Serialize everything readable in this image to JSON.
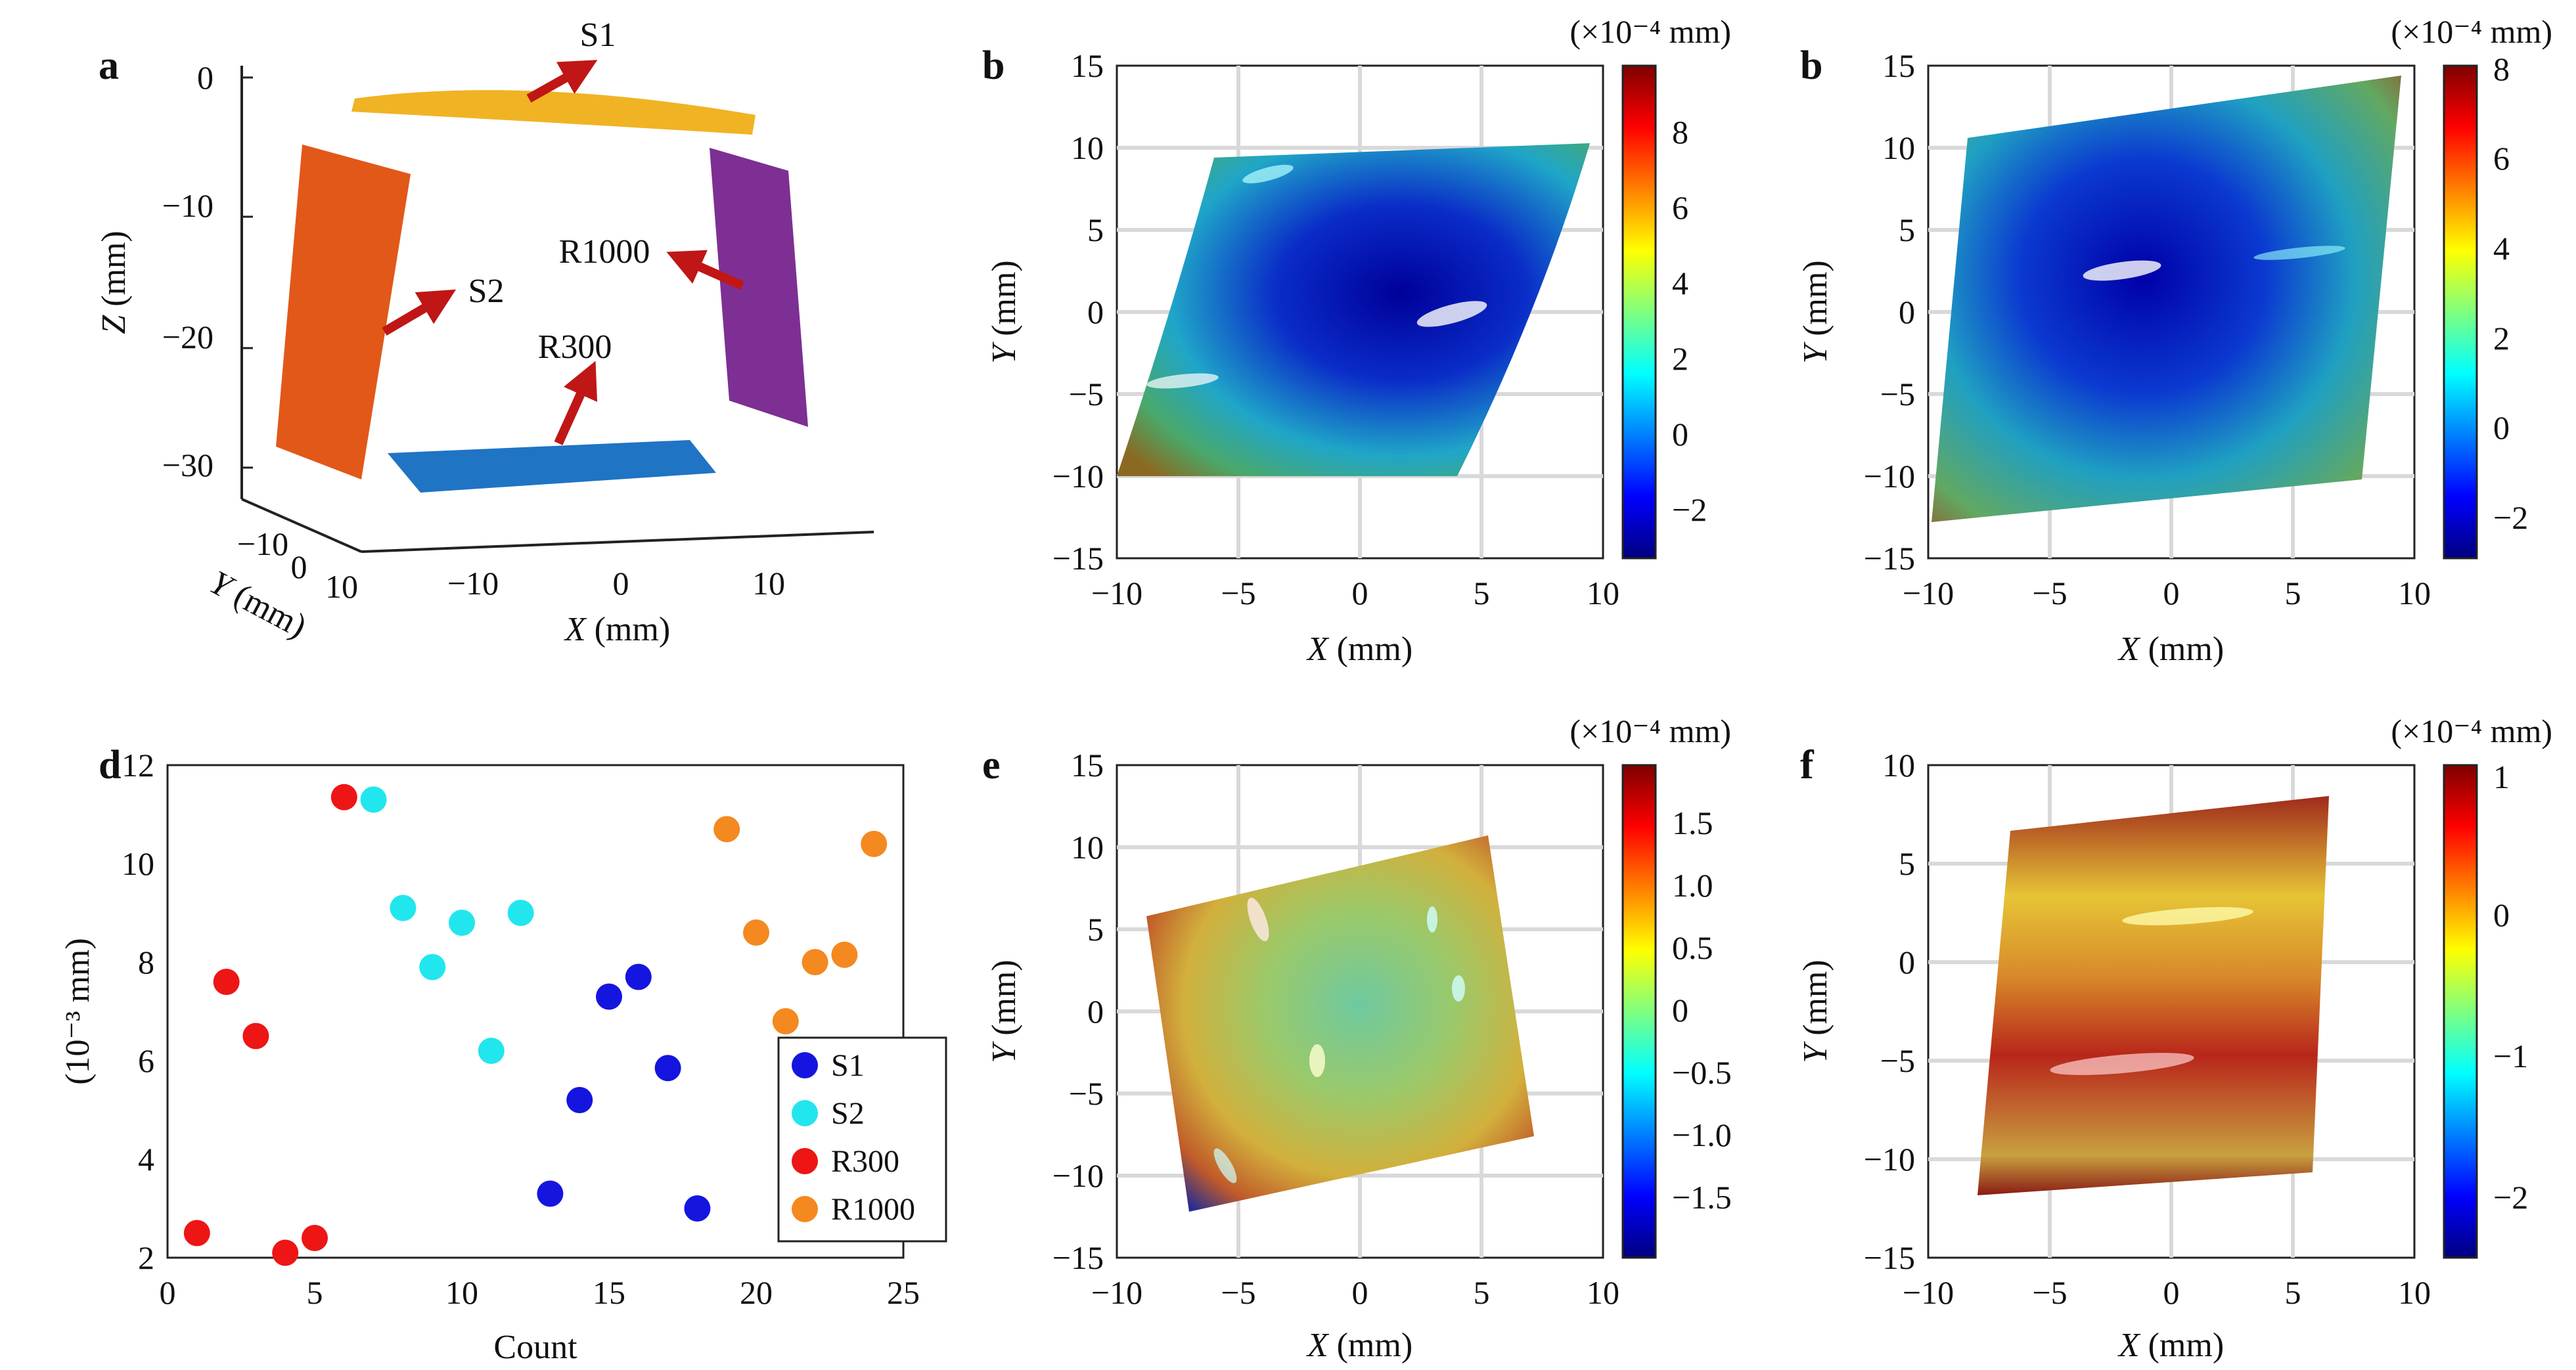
{
  "colors": {
    "S1": "#1515e0",
    "S2": "#22e6ee",
    "R300": "#ee1515",
    "R1000": "#f4891f",
    "surface_S1": "#f0b323",
    "surface_S2": "#e25819",
    "surface_R300": "#1f74c4",
    "surface_R1000": "#7d2f93",
    "arrow": "#c01616",
    "grid": "#d9d9d9",
    "axis": "#222222"
  },
  "panels": [
    {
      "id": "a",
      "letter": "a",
      "type": "3d-scatter-surfaces",
      "xlabel_var": "X",
      "xlabel_unit": " (mm)",
      "ylabel_var": "Y",
      "ylabel_unit": " (mm)",
      "zlabel_var": "Z",
      "zlabel_unit": " (mm)",
      "x_ticks": [
        "−10",
        "0",
        "10"
      ],
      "y_ticks": [
        "−10",
        "0",
        "10"
      ],
      "z_ticks": [
        "0",
        "−10",
        "−20",
        "−30"
      ],
      "surface_labels": [
        "S1",
        "S2",
        "R300",
        "R1000"
      ]
    },
    {
      "id": "b1",
      "letter": "b",
      "type": "heatmap",
      "xlabel_var": "X",
      "xlabel_unit": " (mm)",
      "ylabel_var": "Y",
      "ylabel_unit": " (mm)",
      "x_ticks": [
        "−10",
        "−5",
        "0",
        "5",
        "10"
      ],
      "y_ticks": [
        "15",
        "10",
        "5",
        "0",
        "−5",
        "−10",
        "−15"
      ],
      "colorbar_unit": "(×10⁻⁴ mm)",
      "colorbar_ticks": [
        "8",
        "6",
        "4",
        "2",
        "0",
        "−2"
      ],
      "colorbar_range": [
        -3.4,
        9.6
      ]
    },
    {
      "id": "b2",
      "letter": "b",
      "type": "heatmap",
      "xlabel_var": "X",
      "xlabel_unit": " (mm)",
      "ylabel_var": "Y",
      "ylabel_unit": " (mm)",
      "x_ticks": [
        "−10",
        "−5",
        "0",
        "5",
        "10"
      ],
      "y_ticks": [
        "15",
        "10",
        "5",
        "0",
        "−5",
        "−10",
        "−15"
      ],
      "colorbar_unit": "(×10⁻⁴ mm)",
      "colorbar_ticks": [
        "8",
        "6",
        "4",
        "2",
        "0",
        "−2"
      ],
      "colorbar_range": [
        -2.8,
        8.2
      ]
    },
    {
      "id": "e",
      "letter": "e",
      "type": "heatmap",
      "xlabel_var": "X",
      "xlabel_unit": " (mm)",
      "ylabel_var": "Y",
      "ylabel_unit": " (mm)",
      "x_ticks": [
        "−10",
        "−5",
        "0",
        "5",
        "10"
      ],
      "y_ticks": [
        "15",
        "10",
        "5",
        "0",
        "−5",
        "−10",
        "−15"
      ],
      "colorbar_unit": "(×10⁻⁴ mm)",
      "colorbar_ticks": [
        "1.5",
        "1.0",
        "0.5",
        "0",
        "−0.5",
        "−1.0",
        "−1.5"
      ],
      "colorbar_range": [
        -2.0,
        2.0
      ]
    },
    {
      "id": "f",
      "letter": "f",
      "type": "heatmap",
      "xlabel_var": "X",
      "xlabel_unit": " (mm)",
      "ylabel_var": "Y",
      "ylabel_unit": " (mm)",
      "x_ticks": [
        "−10",
        "−5",
        "0",
        "5",
        "10"
      ],
      "y_ticks": [
        "10",
        "5",
        "0",
        "−5",
        "−10",
        "−15"
      ],
      "colorbar_unit": "(×10⁻⁴ mm)",
      "colorbar_ticks": [
        "1",
        "0",
        "−1",
        "−2"
      ],
      "colorbar_range": [
        -2.3,
        1.2
      ]
    }
  ],
  "chart_data": {
    "type": "scatter",
    "letter": "d",
    "xlabel": "Count",
    "ylabel": "(10⁻³ mm)",
    "xlim": [
      0,
      25
    ],
    "ylim": [
      2,
      12
    ],
    "x_ticks": [
      "0",
      "5",
      "10",
      "15",
      "20",
      "25"
    ],
    "y_ticks": [
      "12",
      "10",
      "8",
      "6",
      "4",
      "2"
    ],
    "legend_position": "bottom-right",
    "series": [
      {
        "name": "S1",
        "x": [
          13,
          14,
          15,
          16,
          17,
          18
        ],
        "y": [
          3.3,
          5.2,
          7.3,
          7.7,
          5.85,
          3.0
        ]
      },
      {
        "name": "S2",
        "x": [
          7,
          8,
          9,
          10,
          11,
          12
        ],
        "y": [
          11.3,
          9.1,
          7.9,
          8.8,
          6.2,
          9.0
        ]
      },
      {
        "name": "R300",
        "x": [
          1,
          2,
          3,
          4,
          5,
          6
        ],
        "y": [
          2.5,
          7.6,
          6.5,
          2.1,
          2.4,
          11.35
        ]
      },
      {
        "name": "R1000",
        "x": [
          19,
          20,
          21,
          22,
          23,
          24
        ],
        "y": [
          10.7,
          8.6,
          6.8,
          8.0,
          8.15,
          10.4
        ]
      }
    ]
  }
}
